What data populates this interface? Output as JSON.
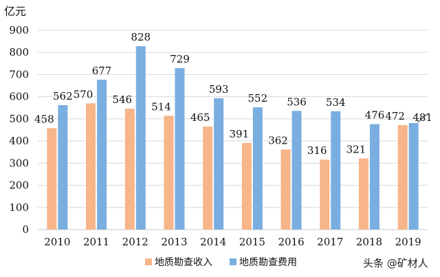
{
  "chart_data": {
    "type": "bar",
    "unit_label": "亿元",
    "categories": [
      "2010",
      "2011",
      "2012",
      "2013",
      "2014",
      "2015",
      "2016",
      "2017",
      "2018",
      "2019"
    ],
    "series": [
      {
        "name": "地质勘查收入",
        "color": "#f7b58a",
        "values": [
          458,
          570,
          546,
          514,
          465,
          391,
          362,
          316,
          321,
          472
        ]
      },
      {
        "name": "地质勘查费用",
        "color": "#7aaee0",
        "values": [
          562,
          677,
          828,
          729,
          593,
          552,
          536,
          534,
          476,
          481
        ]
      }
    ],
    "ylim": [
      0,
      900
    ],
    "yticks": [
      0,
      100,
      200,
      300,
      400,
      500,
      600,
      700,
      800,
      900
    ],
    "grid": true,
    "legend": "bottom"
  },
  "watermark": "头条 @矿材人"
}
